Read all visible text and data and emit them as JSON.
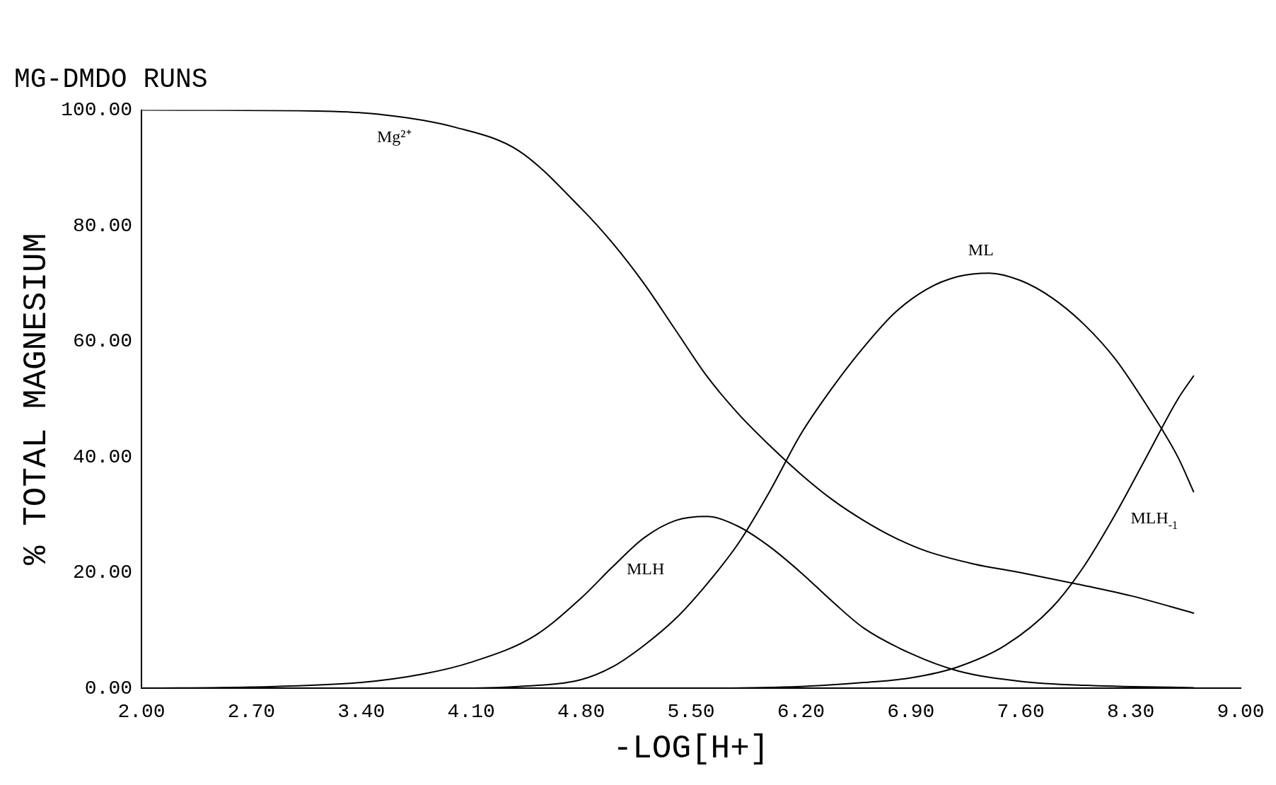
{
  "chart_data": {
    "type": "line",
    "title": "MG-DMDO RUNS",
    "xlabel": "-LOG[H+]",
    "ylabel": "% TOTAL MAGNESIUM",
    "xlim": [
      2,
      9
    ],
    "xticks": [
      {
        "value": 2,
        "label": "2.00"
      },
      {
        "value": 2.7,
        "label": "2.70"
      },
      {
        "value": 3.4,
        "label": "3.40"
      },
      {
        "value": 4.1,
        "label": "4.10"
      },
      {
        "value": 4.8,
        "label": "4.80"
      },
      {
        "value": 5.5,
        "label": "5.50"
      },
      {
        "value": 6.2,
        "label": "6.20"
      },
      {
        "value": 6.9,
        "label": "6.90"
      },
      {
        "value": 7.6,
        "label": "7.60"
      },
      {
        "value": 8.3,
        "label": "8.30"
      },
      {
        "value": 9,
        "label": "9.00"
      }
    ],
    "ylim": [
      0,
      100
    ],
    "yticks": [
      {
        "value": 0,
        "label": "0.00"
      },
      {
        "value": 20,
        "label": "20.00"
      },
      {
        "value": 40,
        "label": "40.00"
      },
      {
        "value": 60,
        "label": "60.00"
      },
      {
        "value": 80,
        "label": "80.00"
      },
      {
        "value": 100,
        "label": "100.00"
      }
    ],
    "grid": false,
    "legend": false,
    "marker": "none",
    "line_style": "solid",
    "series": [
      {
        "name": "Mg²⁺",
        "color": "#000000",
        "x": [
          2.0,
          3.0,
          3.5,
          4.0,
          4.4,
          4.8,
          5.0,
          5.2,
          5.4,
          5.6,
          5.8,
          6.0,
          6.2,
          6.4,
          6.6,
          6.8,
          7.0,
          7.3,
          7.6,
          8.0,
          8.3,
          8.7
        ],
        "values": [
          100,
          99.9,
          99.3,
          97,
          93,
          83,
          77,
          70,
          62,
          54,
          47.5,
          42,
          37,
          32.6,
          29,
          26,
          23.7,
          21.5,
          20,
          17.8,
          16,
          13
        ]
      },
      {
        "name": "MLH",
        "color": "#000000",
        "x": [
          2.0,
          2.7,
          3.4,
          3.8,
          4.1,
          4.5,
          4.8,
          5.0,
          5.2,
          5.4,
          5.6,
          5.8,
          6.0,
          6.2,
          6.4,
          6.6,
          6.9,
          7.2,
          7.6,
          8.0,
          8.7
        ],
        "values": [
          0,
          0.2,
          1,
          2.5,
          4.5,
          9,
          15.6,
          21,
          26,
          29,
          29.7,
          28,
          24.5,
          20,
          15,
          10.4,
          6,
          3,
          1.2,
          0.5,
          0.1
        ]
      },
      {
        "name": "ML",
        "color": "#000000",
        "x": [
          2.0,
          4.0,
          4.4,
          4.8,
          5.0,
          5.2,
          5.4,
          5.6,
          5.8,
          6.0,
          6.2,
          6.4,
          6.6,
          6.8,
          7.0,
          7.2,
          7.4,
          7.6,
          7.8,
          8.0,
          8.2,
          8.4,
          8.6,
          8.7
        ],
        "values": [
          0,
          0,
          0.3,
          1.5,
          3.7,
          7.4,
          12,
          18,
          25,
          34,
          44,
          52,
          59,
          65,
          69,
          71.2,
          71.8,
          70.5,
          67.5,
          63,
          57,
          49,
          40,
          34
        ]
      },
      {
        "name": "MLH$_{-1}$",
        "color": "#000000",
        "x": [
          2.0,
          5.5,
          6.2,
          6.6,
          6.9,
          7.2,
          7.5,
          7.8,
          8.0,
          8.2,
          8.4,
          8.6,
          8.7
        ],
        "values": [
          0,
          0,
          0.3,
          1,
          1.8,
          3.7,
          7.4,
          14,
          21,
          30,
          40,
          50,
          54
        ]
      }
    ]
  }
}
